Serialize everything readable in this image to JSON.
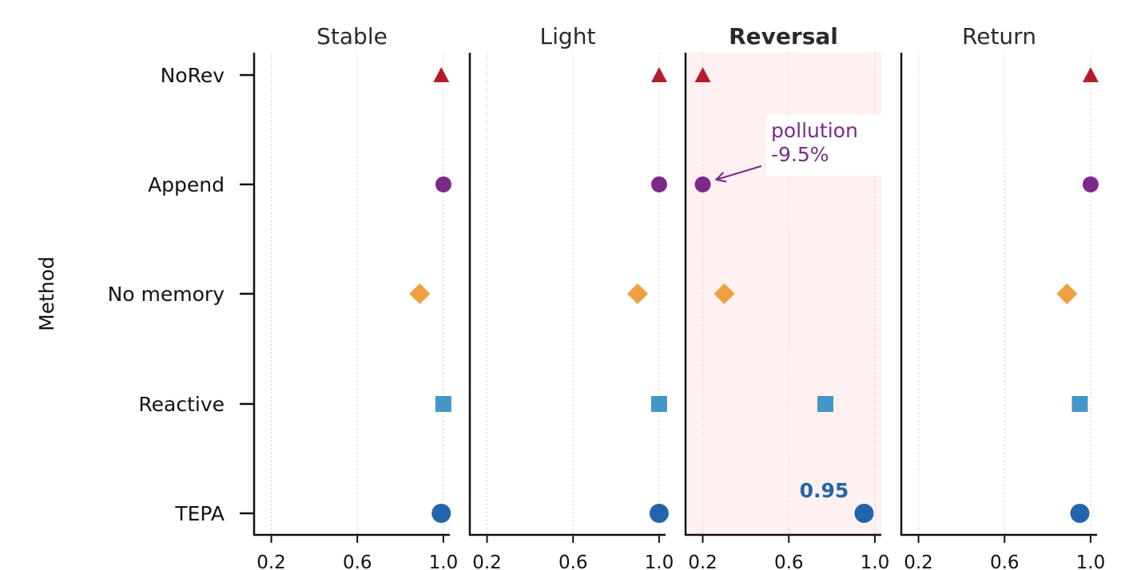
{
  "chart_data": {
    "type": "scatter",
    "ylabel": "Method",
    "categories": [
      "NoRev",
      "Append",
      "No memory",
      "Reactive",
      "TEPA"
    ],
    "xlim": [
      0.12,
      1.03
    ],
    "xticks": [
      0.2,
      0.6,
      1.0
    ],
    "xtick_labels": [
      "0.2",
      "0.6",
      "1.0"
    ],
    "grid": "vertical dotted",
    "highlight_panel": "Reversal",
    "highlight_color": "#b51c2b",
    "panels": [
      {
        "title": "Stable",
        "values": [
          0.99,
          1.0,
          0.89,
          1.0,
          0.99
        ]
      },
      {
        "title": "Light",
        "values": [
          1.0,
          1.0,
          0.9,
          1.0,
          1.0
        ]
      },
      {
        "title": "Reversal",
        "values": [
          0.2,
          0.2,
          0.3,
          0.77,
          0.95
        ]
      },
      {
        "title": "Return",
        "values": [
          1.0,
          1.0,
          0.89,
          0.95,
          0.95
        ]
      }
    ],
    "series_style": [
      {
        "marker": "triangle",
        "color": "#b51c2b"
      },
      {
        "marker": "circle",
        "color": "#7b2a8b"
      },
      {
        "marker": "diamond",
        "color": "#f0a040"
      },
      {
        "marker": "square",
        "color": "#4596c8"
      },
      {
        "marker": "circle",
        "color": "#2166ac"
      }
    ],
    "annotations": [
      {
        "panel": "Reversal",
        "category": "Append",
        "lines": [
          "pollution",
          "-9.5%"
        ],
        "color": "#7b2a8b"
      },
      {
        "panel": "Reversal",
        "category": "TEPA",
        "label": "0.95",
        "color": "#2166ac"
      }
    ]
  }
}
